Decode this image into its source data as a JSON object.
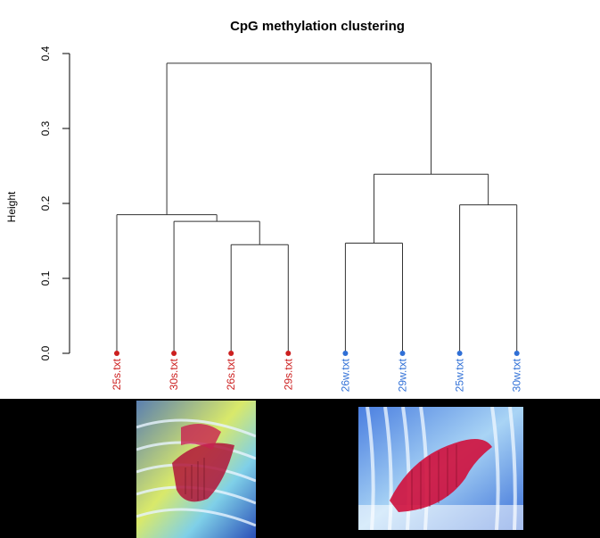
{
  "chart_data": {
    "type": "dendrogram",
    "title": "CpG methylation clustering",
    "ylabel": "Height",
    "ylim": [
      0,
      0.4
    ],
    "yticks": [
      "0.0",
      "0.1",
      "0.2",
      "0.3",
      "0.4"
    ],
    "leaves": [
      {
        "label": "25s.txt",
        "group": "s"
      },
      {
        "label": "30s.txt",
        "group": "s"
      },
      {
        "label": "26s.txt",
        "group": "s"
      },
      {
        "label": "29s.txt",
        "group": "s"
      },
      {
        "label": "26w.txt",
        "group": "w"
      },
      {
        "label": "29w.txt",
        "group": "w"
      },
      {
        "label": "25w.txt",
        "group": "w"
      },
      {
        "label": "30w.txt",
        "group": "w"
      }
    ],
    "merges": [
      {
        "a": "26s.txt",
        "b": "29s.txt",
        "height": 0.145
      },
      {
        "a": "30s.txt",
        "b": "m1",
        "height": 0.176
      },
      {
        "a": "25s.txt",
        "b": "m2",
        "height": 0.185
      },
      {
        "a": "26w.txt",
        "b": "29w.txt",
        "height": 0.147
      },
      {
        "a": "25w.txt",
        "b": "30w.txt",
        "height": 0.198
      },
      {
        "a": "m4",
        "b": "m5",
        "height": 0.239
      },
      {
        "a": "m3",
        "b": "m6",
        "height": 0.387
      }
    ],
    "colors": {
      "s": "#cc1f1f",
      "w": "#2f6fd6",
      "line": "#333333"
    }
  },
  "images": [
    {
      "name": "heart-anatomy-illustration-1"
    },
    {
      "name": "heart-anatomy-illustration-2"
    }
  ]
}
